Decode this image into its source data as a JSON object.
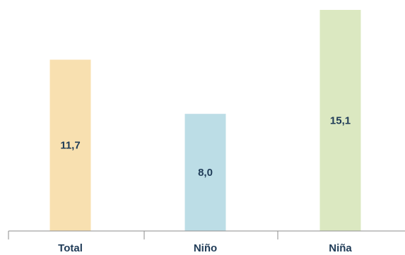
{
  "chart_data": {
    "type": "bar",
    "categories": [
      "Total",
      "Niño",
      "Niña"
    ],
    "values": [
      11.7,
      8.0,
      15.1
    ],
    "value_labels": [
      "11,7",
      "8,0",
      "15,1"
    ],
    "colors": [
      "#f8e0b0",
      "#bcdde6",
      "#dbe8c1"
    ],
    "label_color": "#1f3b57",
    "axis_color": "#8c8c8c",
    "title": "",
    "xlabel": "",
    "ylabel": "",
    "ylim": [
      0,
      15.1
    ],
    "grid": false,
    "legend": "none"
  }
}
